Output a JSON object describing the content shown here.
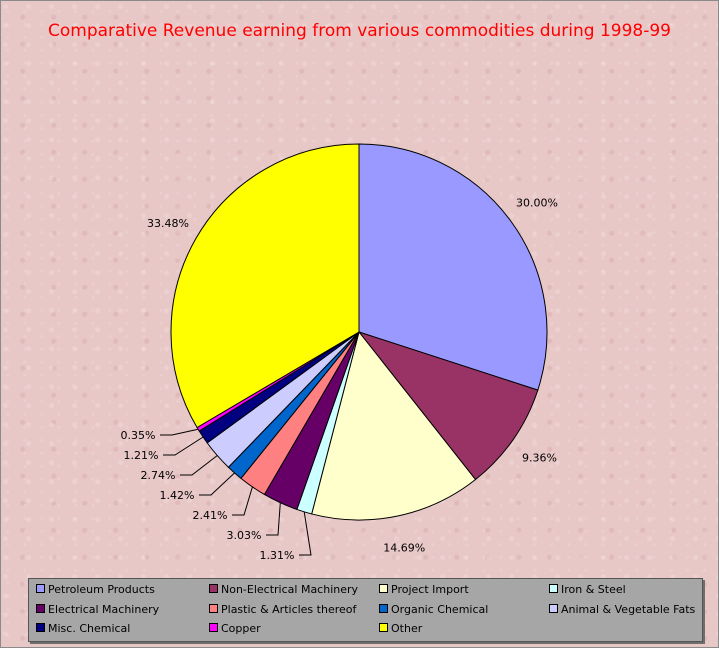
{
  "chart_data": {
    "type": "pie",
    "title": "Comparative Revenue earning from various commodities during 1998-99",
    "start_angle_deg": 0,
    "direction": "clockwise",
    "slices": [
      {
        "label": "Petroleum Products",
        "value": 30.0,
        "value_label": "30.00%",
        "color": "#9999ff"
      },
      {
        "label": "Non-Electrical Machinery",
        "value": 9.36,
        "value_label": "9.36%",
        "color": "#993366"
      },
      {
        "label": "Project Import",
        "value": 14.69,
        "value_label": "14.69%",
        "color": "#ffffcc"
      },
      {
        "label": "Iron & Steel",
        "value": 1.31,
        "value_label": "1.31%",
        "color": "#ccffff"
      },
      {
        "label": "Electrical Machinery",
        "value": 3.03,
        "value_label": "3.03%",
        "color": "#660066"
      },
      {
        "label": "Plastic & Articles thereof",
        "value": 2.41,
        "value_label": "2.41%",
        "color": "#ff8080"
      },
      {
        "label": "Organic Chemical",
        "value": 1.42,
        "value_label": "1.42%",
        "color": "#0066cc"
      },
      {
        "label": "Animal & Vegetable Fats",
        "value": 2.74,
        "value_label": "2.74%",
        "color": "#ccccff"
      },
      {
        "label": "Misc. Chemical",
        "value": 1.21,
        "value_label": "1.21%",
        "color": "#000080"
      },
      {
        "label": "Copper",
        "value": 0.35,
        "value_label": "0.35%",
        "color": "#ff00ff"
      },
      {
        "label": "Other",
        "value": 33.48,
        "value_label": "33.48%",
        "color": "#ffff00"
      }
    ],
    "legend_position": "bottom"
  }
}
